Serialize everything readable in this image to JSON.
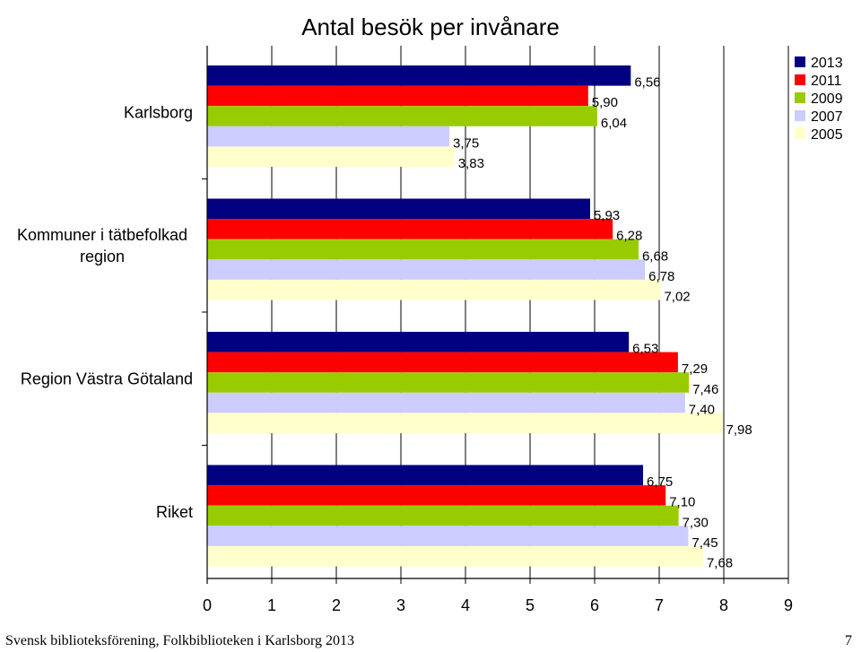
{
  "chart_data": {
    "type": "bar",
    "orientation": "horizontal",
    "title": "Antal besök per invånare",
    "categories": [
      "Karlsborg",
      "Kommuner i tätbefolkad region",
      "Region Västra Götaland",
      "Riket"
    ],
    "category_lines": [
      [
        "Karlsborg"
      ],
      [
        "Kommuner i tätbefolkad",
        "region"
      ],
      [
        "Region Västra Götaland"
      ],
      [
        "Riket"
      ]
    ],
    "series": [
      {
        "name": "2013",
        "color": "#000080",
        "values": [
          6.56,
          5.93,
          6.53,
          6.75
        ],
        "labels": [
          "6,56",
          "5,93",
          "6,53",
          "6,75"
        ]
      },
      {
        "name": "2011",
        "color": "#ff0000",
        "values": [
          5.9,
          6.28,
          7.29,
          7.1
        ],
        "labels": [
          "5,90",
          "6,28",
          "7,29",
          "7,10"
        ]
      },
      {
        "name": "2009",
        "color": "#99cc00",
        "values": [
          6.04,
          6.68,
          7.46,
          7.3
        ],
        "labels": [
          "6,04",
          "6,68",
          "7,46",
          "7,30"
        ]
      },
      {
        "name": "2007",
        "color": "#ccccff",
        "values": [
          3.75,
          6.78,
          7.4,
          7.45
        ],
        "labels": [
          "3,75",
          "6,78",
          "7,40",
          "7,45"
        ]
      },
      {
        "name": "2005",
        "color": "#ffffcc",
        "values": [
          3.83,
          7.02,
          7.98,
          7.68
        ],
        "labels": [
          "3,83",
          "7,02",
          "7,98",
          "7,68"
        ]
      }
    ],
    "xlim": [
      0,
      9
    ],
    "xticks": [
      "0",
      "1",
      "2",
      "3",
      "4",
      "5",
      "6",
      "7",
      "8",
      "9"
    ],
    "grid": "vertical",
    "legend": "top-right"
  },
  "footer": {
    "left": "Svensk biblioteksförening, Folkbiblioteken i Karlsborg 2013",
    "page_number": "7"
  }
}
